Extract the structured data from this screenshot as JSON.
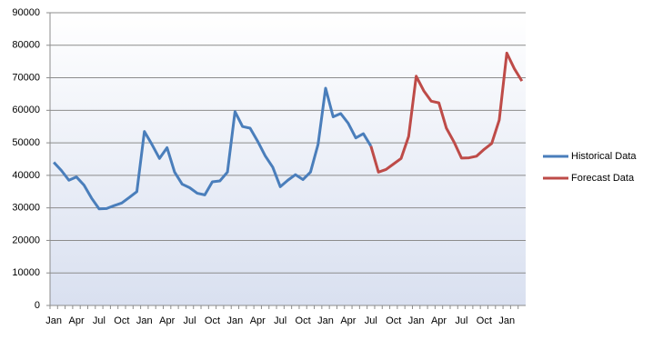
{
  "chart_data": {
    "type": "line",
    "categories": [
      "Jan",
      null,
      null,
      "Apr",
      null,
      null,
      "Jul",
      null,
      null,
      "Oct",
      null,
      null,
      "Jan",
      null,
      null,
      "Apr",
      null,
      null,
      "Jul",
      null,
      null,
      "Oct",
      null,
      null,
      "Jan",
      null,
      null,
      "Apr",
      null,
      null,
      "Jul",
      null,
      null,
      "Oct",
      null,
      null,
      "Jan",
      null,
      null,
      "Apr",
      null,
      null,
      "Jul",
      null,
      null,
      "Oct",
      null,
      null,
      "Jan",
      null,
      null,
      "Apr",
      null,
      null,
      "Jul",
      null,
      null,
      "Oct",
      null,
      null,
      "Jan",
      null,
      null
    ],
    "series": [
      {
        "name": "Historical Data",
        "color": "#4a7ebb",
        "values": [
          44000,
          41500,
          38500,
          39500,
          37000,
          33000,
          29700,
          29800,
          30700,
          31500,
          33200,
          35000,
          53500,
          49500,
          45200,
          48500,
          41000,
          37300,
          36200,
          34500,
          34000,
          38000,
          38300,
          41000,
          59600,
          55000,
          54500,
          50500,
          46000,
          42500,
          36500,
          38500,
          40200,
          38700,
          41000,
          49500,
          66800,
          58000,
          59000,
          56000,
          51500,
          52800,
          49000,
          null,
          null,
          null,
          null,
          null,
          null,
          null,
          null,
          null,
          null,
          null,
          null,
          null,
          null,
          null,
          null,
          null,
          null,
          null,
          null
        ]
      },
      {
        "name": "Forecast Data",
        "color": "#be4b48",
        "values": [
          null,
          null,
          null,
          null,
          null,
          null,
          null,
          null,
          null,
          null,
          null,
          null,
          null,
          null,
          null,
          null,
          null,
          null,
          null,
          null,
          null,
          null,
          null,
          null,
          null,
          null,
          null,
          null,
          null,
          null,
          null,
          null,
          null,
          null,
          null,
          null,
          null,
          null,
          null,
          null,
          null,
          null,
          49000,
          41000,
          41800,
          43500,
          45200,
          52000,
          70500,
          66000,
          62800,
          62300,
          54500,
          50300,
          45300,
          45400,
          45900,
          48000,
          49800,
          57000,
          77600,
          72800,
          69000
        ]
      }
    ],
    "ylim": [
      0,
      90000
    ],
    "yticks": [
      0,
      10000,
      20000,
      30000,
      40000,
      50000,
      60000,
      70000,
      80000,
      90000
    ],
    "grid": true,
    "legend": "right"
  }
}
